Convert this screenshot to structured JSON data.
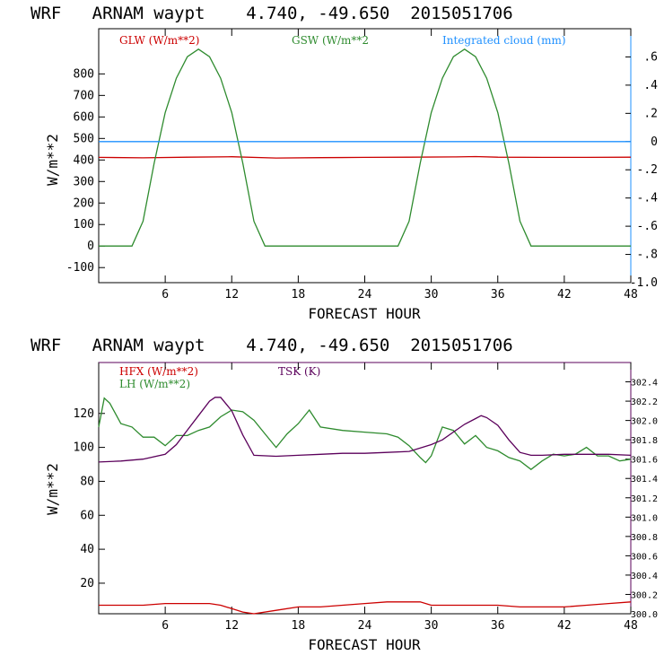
{
  "chart_data": [
    {
      "type": "line",
      "title": "WRF   ARNAM waypt    4.740, -49.650  2015051706",
      "xlabel": "FORECAST HOUR",
      "ylabel": "W/m**2",
      "xlim": [
        0,
        48
      ],
      "ylim": [
        -170,
        1010
      ],
      "xticks": [
        "6",
        "12",
        "18",
        "24",
        "30",
        "36",
        "42",
        "48"
      ],
      "xtick_values": [
        6,
        12,
        18,
        24,
        30,
        36,
        42,
        48
      ],
      "yticks": [
        "-100",
        "0",
        "100",
        "200",
        "300",
        "400",
        "500",
        "600",
        "700",
        "800"
      ],
      "ytick_values": [
        -100,
        0,
        100,
        200,
        300,
        400,
        500,
        600,
        700,
        800
      ],
      "y2lim": [
        -1.0,
        0.8
      ],
      "y2ticks": [
        "-1.0",
        "-.8",
        "-.6",
        "-.4",
        "-.2",
        "0",
        ".2",
        ".4",
        ".6"
      ],
      "y2tick_values": [
        -1.0,
        -0.8,
        -0.6,
        -0.4,
        -0.2,
        0,
        0.2,
        0.4,
        0.6
      ],
      "series": [
        {
          "name": "GLW (W/m**2)",
          "color": "#cc0000",
          "axis": "left",
          "x": [
            0,
            4,
            8,
            12,
            16,
            20,
            24,
            28,
            32,
            34,
            36,
            40,
            44,
            48
          ],
          "y": [
            412,
            410,
            413,
            415,
            409,
            411,
            412,
            413,
            414,
            416,
            413,
            412,
            412,
            413
          ]
        },
        {
          "name": "GSW (W/m**2",
          "color": "#2e8b2e",
          "axis": "left",
          "x": [
            0,
            3,
            4,
            5,
            6,
            7,
            8,
            9,
            10,
            11,
            12,
            13,
            14,
            15,
            16,
            20,
            24,
            27,
            28,
            29,
            30,
            31,
            32,
            33,
            34,
            35,
            36,
            37,
            38,
            39,
            40,
            44,
            48
          ],
          "y": [
            0,
            0,
            115,
            385,
            620,
            780,
            880,
            915,
            880,
            780,
            620,
            385,
            115,
            0,
            0,
            0,
            0,
            0,
            115,
            385,
            620,
            780,
            880,
            915,
            880,
            780,
            620,
            385,
            115,
            0,
            0,
            0,
            0
          ]
        },
        {
          "name": "Integrated cloud (mm)",
          "color": "#1e90ff",
          "axis": "right",
          "x": [
            0,
            48
          ],
          "y": [
            0,
            0
          ]
        }
      ]
    },
    {
      "type": "line",
      "title": "WRF   ARNAM waypt    4.740, -49.650  2015051706",
      "xlabel": "FORECAST HOUR",
      "ylabel": "W/m**2",
      "xlim": [
        0,
        48
      ],
      "ylim": [
        2,
        150
      ],
      "xticks": [
        "6",
        "12",
        "18",
        "24",
        "30",
        "36",
        "42",
        "48"
      ],
      "xtick_values": [
        6,
        12,
        18,
        24,
        30,
        36,
        42,
        48
      ],
      "yticks": [
        "20",
        "40",
        "60",
        "80",
        "100",
        "120"
      ],
      "ytick_values": [
        20,
        40,
        60,
        80,
        100,
        120
      ],
      "y2lim": [
        300.0,
        302.6
      ],
      "y2ticks": [
        "300.0",
        "300.2",
        "300.4",
        "300.6",
        "300.8",
        "301.0",
        "301.2",
        "301.4",
        "301.6",
        "301.8",
        "302.0",
        "302.2",
        "302.4"
      ],
      "y2tick_values": [
        300.0,
        300.2,
        300.4,
        300.6,
        300.8,
        301.0,
        301.2,
        301.4,
        301.6,
        301.8,
        302.0,
        302.2,
        302.4
      ],
      "series": [
        {
          "name": "HFX (W/m**2)",
          "color": "#cc0000",
          "axis": "left",
          "x": [
            0,
            2,
            4,
            6,
            8,
            10,
            11,
            12,
            13,
            14,
            16,
            18,
            20,
            22,
            24,
            26,
            28,
            29,
            30,
            32,
            34,
            36,
            38,
            40,
            42,
            44,
            46,
            48
          ],
          "y": [
            7,
            7,
            7,
            8,
            8,
            8,
            7,
            5,
            3,
            2,
            4,
            6,
            6,
            7,
            8,
            9,
            9,
            9,
            7,
            7,
            7,
            7,
            6,
            6,
            6,
            7,
            8,
            9
          ]
        },
        {
          "name": "LH  (W/m**2)",
          "color": "#2e8b2e",
          "axis": "left",
          "x": [
            0,
            0.5,
            1,
            2,
            3,
            4,
            5,
            6,
            7,
            8,
            9,
            10,
            11,
            12,
            13,
            14,
            15,
            16,
            17,
            18,
            19,
            20,
            22,
            24,
            26,
            27,
            28,
            29,
            29.5,
            30,
            31,
            32,
            33,
            34,
            35,
            36,
            37,
            38,
            39,
            40,
            41,
            42,
            43,
            44,
            45,
            46,
            47,
            48
          ],
          "y": [
            112,
            129,
            126,
            114,
            112,
            106,
            106,
            101,
            107,
            107,
            110,
            112,
            118,
            122,
            121,
            116,
            108,
            100,
            108,
            114,
            122,
            112,
            110,
            109,
            108,
            106,
            101,
            94,
            91,
            95,
            112,
            110,
            102,
            107,
            100,
            98,
            94,
            92,
            87,
            92,
            96,
            95,
            96,
            100,
            95,
            95,
            92,
            93
          ]
        },
        {
          "name": "TSK (K)",
          "color": "#5b005b",
          "axis": "right",
          "x": [
            0,
            2,
            4,
            6,
            7,
            8,
            9,
            10,
            10.5,
            11,
            12,
            13,
            14,
            16,
            18,
            20,
            22,
            24,
            26,
            28,
            30,
            31,
            32,
            33,
            34,
            34.5,
            35,
            36,
            37,
            38,
            39,
            40,
            42,
            44,
            46,
            48
          ],
          "y": [
            301.57,
            301.58,
            301.6,
            301.65,
            301.75,
            301.9,
            302.05,
            302.2,
            302.24,
            302.24,
            302.1,
            301.85,
            301.64,
            301.63,
            301.64,
            301.65,
            301.66,
            301.66,
            301.67,
            301.68,
            301.75,
            301.8,
            301.88,
            301.96,
            302.02,
            302.05,
            302.03,
            301.95,
            301.8,
            301.67,
            301.64,
            301.64,
            301.65,
            301.65,
            301.65,
            301.64
          ]
        }
      ]
    }
  ]
}
